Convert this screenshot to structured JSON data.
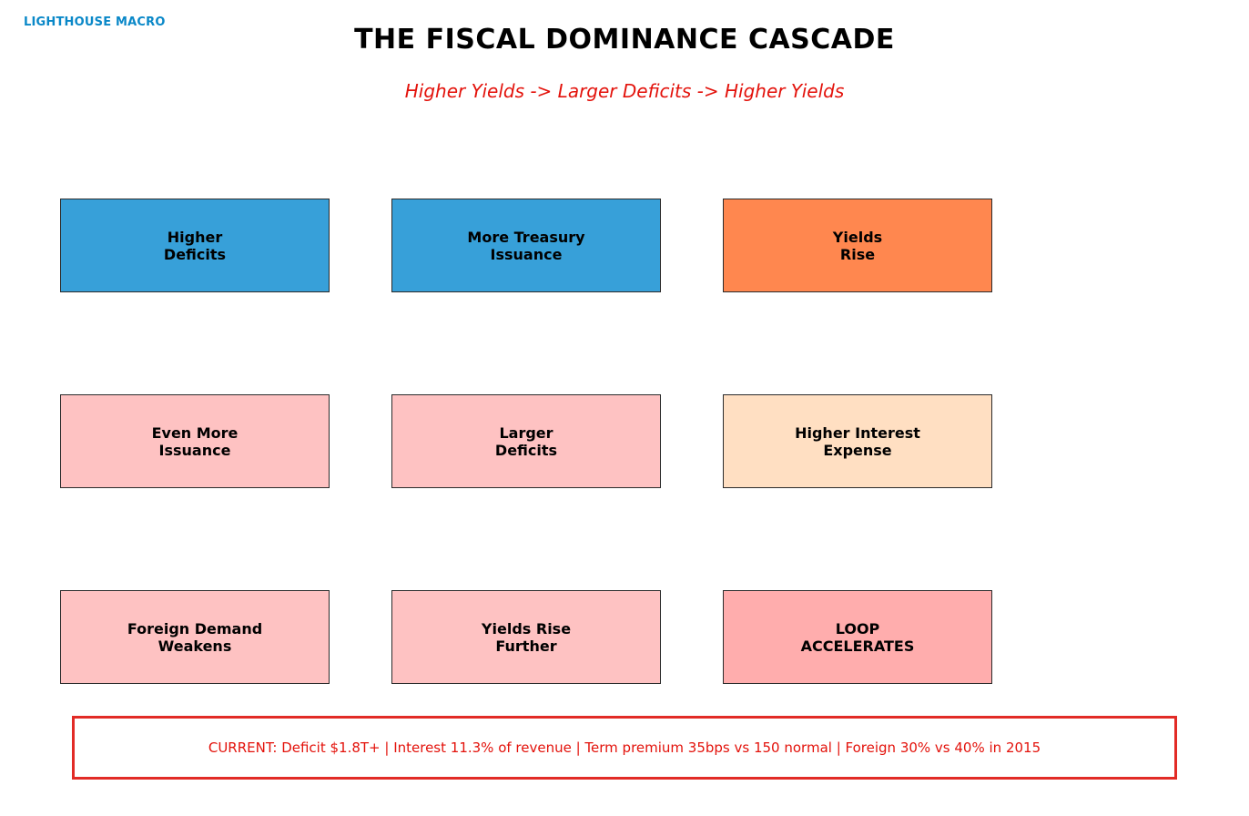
{
  "brand": "LIGHTHOUSE MACRO",
  "title": "THE FISCAL DOMINANCE CASCADE",
  "subtitle": "Higher Yields -> Larger Deficits -> Higher Yields",
  "boxes": [
    {
      "label": "Higher\nDeficits",
      "color": "#37a0d9"
    },
    {
      "label": "More Treasury\nIssuance",
      "color": "#37a0d9"
    },
    {
      "label": "Yields\nRise",
      "color": "#ff874f"
    },
    {
      "label": "Even More\nIssuance",
      "color": "#fec2c2"
    },
    {
      "label": "Larger\nDeficits",
      "color": "#fec2c2"
    },
    {
      "label": "Higher Interest\nExpense",
      "color": "#ffdfc2"
    },
    {
      "label": "Foreign Demand\nWeakens",
      "color": "#fec2c2"
    },
    {
      "label": "Yields Rise\nFurther",
      "color": "#fec2c2"
    },
    {
      "label": "LOOP\nACCELERATES",
      "color": "#ffadad"
    }
  ],
  "status_text": "CURRENT: Deficit $1.8T+ | Interest 11.3% of revenue | Term premium 35bps vs 150 normal | Foreign 30% vs 40% in 2015",
  "colors": {
    "brand": "#0a88c8",
    "accent": "#e3120b",
    "status_border": "#e22b26"
  }
}
